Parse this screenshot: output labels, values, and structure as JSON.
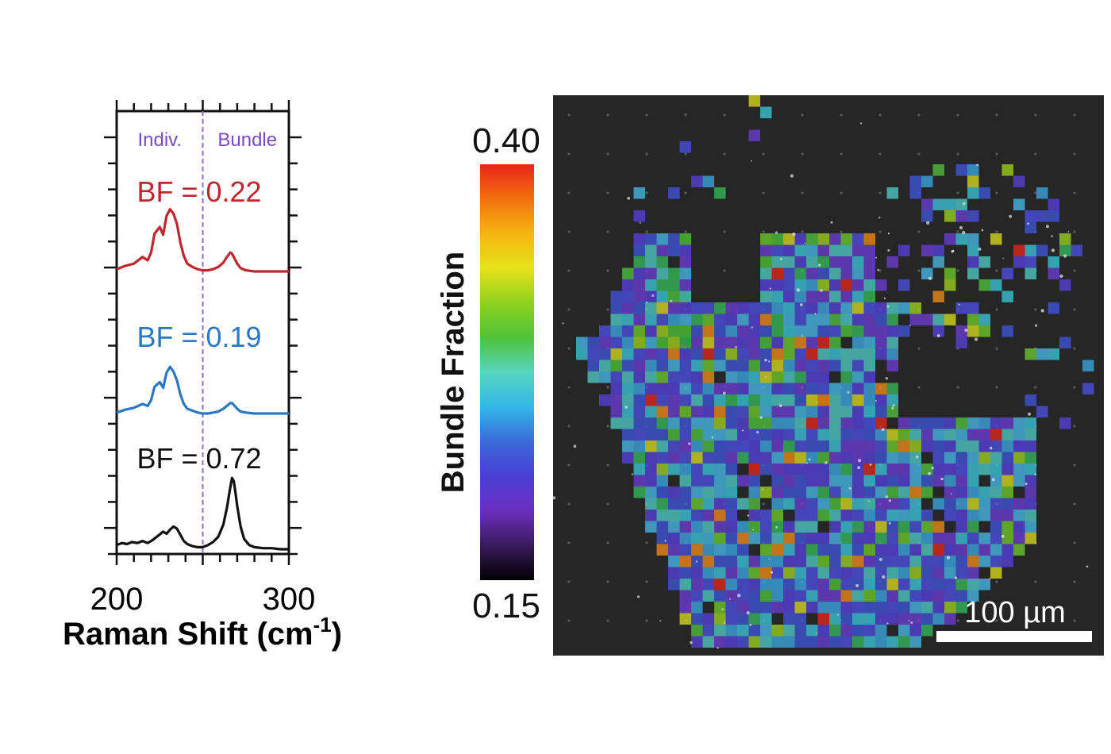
{
  "colors": {
    "red_series": "#c0272d",
    "blue_series": "#2a78c4",
    "black_series": "#111111",
    "divider": "#8a6cc9",
    "region_label": "#7a4bbf",
    "scale_bar": "#ffffff",
    "map_background": "#262626"
  },
  "chart_data": [
    {
      "type": "line",
      "xlabel": "Raman Shift (cm",
      "xlabel_sup": "-1",
      "xlabel_close": ")",
      "xlim": [
        200,
        300
      ],
      "xticks": [
        200,
        300
      ],
      "divider_x": 250,
      "region_labels": [
        "Indiv.",
        "Bundle"
      ],
      "series": [
        {
          "name": "BF = 0.22",
          "color": "#c0272d",
          "x": [
            200,
            205,
            210,
            215,
            218,
            220,
            222,
            225,
            227,
            229,
            231,
            233,
            235,
            237,
            239,
            241,
            244,
            247,
            250,
            253,
            256,
            259,
            262,
            264,
            266,
            267,
            268,
            270,
            272,
            275,
            280,
            285,
            290,
            295,
            300
          ],
          "y": [
            0.02,
            0.05,
            0.07,
            0.13,
            0.1,
            0.17,
            0.34,
            0.4,
            0.33,
            0.5,
            0.56,
            0.52,
            0.43,
            0.26,
            0.14,
            0.07,
            0.04,
            0.02,
            0.01,
            0.01,
            0.02,
            0.04,
            0.08,
            0.13,
            0.17,
            0.16,
            0.13,
            0.07,
            0.03,
            0.01,
            0.0,
            0.0,
            0.0,
            0.0,
            0.0
          ]
        },
        {
          "name": "BF = 0.19",
          "color": "#2a78c4",
          "x": [
            200,
            205,
            210,
            215,
            218,
            220,
            222,
            225,
            227,
            229,
            231,
            233,
            235,
            237,
            239,
            241,
            244,
            247,
            250,
            253,
            256,
            259,
            262,
            264,
            266,
            267,
            268,
            270,
            272,
            275,
            280,
            285,
            290,
            295,
            300
          ],
          "y": [
            0.01,
            0.04,
            0.06,
            0.1,
            0.08,
            0.14,
            0.28,
            0.33,
            0.27,
            0.43,
            0.49,
            0.44,
            0.35,
            0.2,
            0.1,
            0.05,
            0.03,
            0.01,
            0.0,
            0.0,
            0.01,
            0.02,
            0.05,
            0.08,
            0.11,
            0.11,
            0.09,
            0.05,
            0.02,
            0.01,
            0.0,
            0.0,
            0.0,
            0.0,
            0.0
          ]
        },
        {
          "name": "BF = 0.72",
          "color": "#111111",
          "x": [
            200,
            203,
            206,
            209,
            212,
            215,
            218,
            221,
            224,
            227,
            229,
            231,
            233,
            235,
            237,
            239,
            241,
            244,
            247,
            250,
            253,
            256,
            259,
            262,
            264,
            266,
            267,
            268,
            269,
            270,
            272,
            274,
            277,
            280,
            285,
            290,
            295,
            300
          ],
          "y": [
            0.04,
            0.06,
            0.05,
            0.07,
            0.06,
            0.08,
            0.06,
            0.09,
            0.13,
            0.17,
            0.15,
            0.19,
            0.22,
            0.2,
            0.14,
            0.08,
            0.05,
            0.03,
            0.02,
            0.02,
            0.04,
            0.07,
            0.12,
            0.24,
            0.4,
            0.6,
            0.69,
            0.66,
            0.55,
            0.42,
            0.22,
            0.1,
            0.04,
            0.02,
            0.01,
            0.01,
            0.0,
            0.0
          ]
        }
      ]
    },
    {
      "type": "heatmap",
      "colorbar_label": "Bundle Fraction",
      "colorbar_range": [
        0.15,
        0.4
      ],
      "colorbar_max_label": "0.40",
      "colorbar_min_label": "0.15",
      "colormap": [
        "#000000",
        "#3a1a5c",
        "#6a2fbf",
        "#4b3fd6",
        "#3a6ad8",
        "#33b7e8",
        "#56d6c0",
        "#4fc23a",
        "#8fd11e",
        "#e6e21a",
        "#f5b611",
        "#f2700e",
        "#e8231c"
      ],
      "scale_bar_label": "100 µm"
    }
  ]
}
